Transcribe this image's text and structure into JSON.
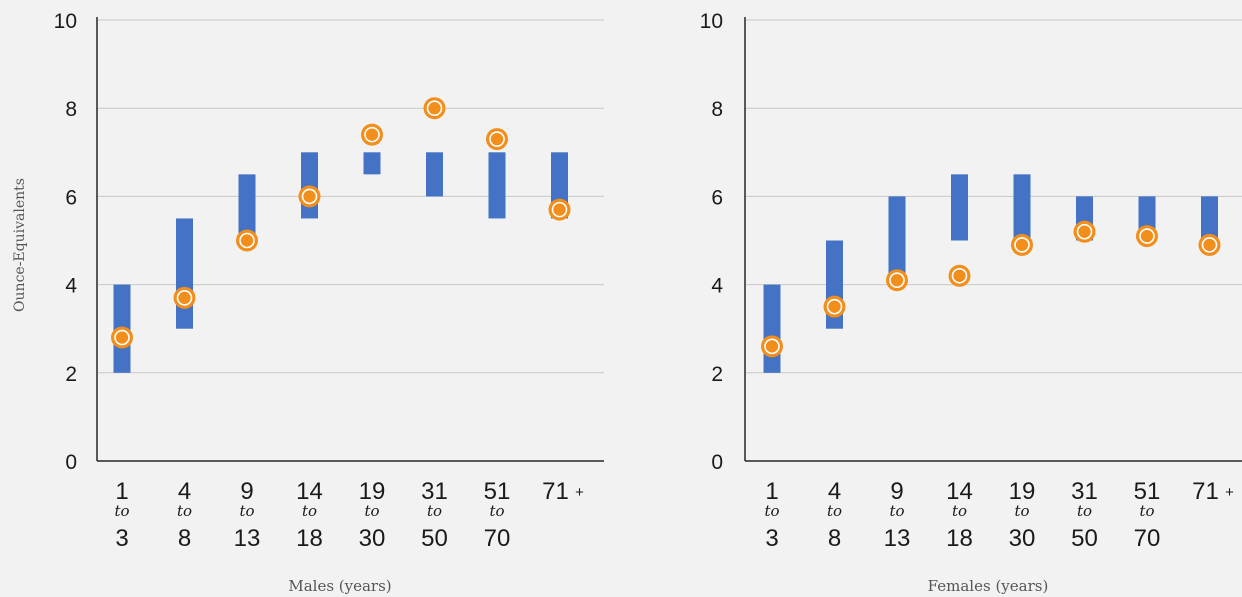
{
  "y_axis_label": "Ounce-Equivalents",
  "colors": {
    "bar": "#4472c4",
    "marker_fill": "#f28e1c",
    "marker_ring": "#ffffff",
    "grid": "#c8c8c8",
    "axis": "#262626"
  },
  "categories": [
    {
      "top": "1",
      "mid": "to",
      "bottom": "3"
    },
    {
      "top": "4",
      "mid": "to",
      "bottom": "8"
    },
    {
      "top": "9",
      "mid": "to",
      "bottom": "13"
    },
    {
      "top": "14",
      "mid": "to",
      "bottom": "18"
    },
    {
      "top": "19",
      "mid": "to",
      "bottom": "30"
    },
    {
      "top": "31",
      "mid": "to",
      "bottom": "50"
    },
    {
      "top": "51",
      "mid": "to",
      "bottom": "70"
    },
    {
      "top": "71",
      "mid": "+",
      "bottom": ""
    }
  ],
  "chart_data": [
    {
      "type": "floating-bar-with-markers",
      "xlabel": "Males (years)",
      "ylabel": "Ounce-Equivalents",
      "ylim": [
        0,
        10
      ],
      "yticks": [
        0,
        2,
        4,
        6,
        8,
        10
      ],
      "grid": true,
      "categories": [
        "1 to 3",
        "4 to 8",
        "9 to 13",
        "14 to 18",
        "19 to 30",
        "31 to 50",
        "51 to 70",
        "71 +"
      ],
      "range_low": [
        2,
        3,
        5,
        5.5,
        6.5,
        6,
        5.5,
        5.5
      ],
      "range_high": [
        4,
        5.5,
        6.5,
        7,
        7,
        7,
        7,
        7
      ],
      "points": [
        2.8,
        3.7,
        5.0,
        6.0,
        7.4,
        8.0,
        7.3,
        5.7
      ]
    },
    {
      "type": "floating-bar-with-markers",
      "xlabel": "Females (years)",
      "ylabel": "",
      "ylim": [
        0,
        10
      ],
      "yticks": [
        0,
        2,
        4,
        6,
        8,
        10
      ],
      "grid": true,
      "categories": [
        "1 to 3",
        "4 to 8",
        "9 to 13",
        "14 to 18",
        "19 to 30",
        "31 to 50",
        "51 to 70",
        "71 +"
      ],
      "range_low": [
        2,
        3,
        4,
        5,
        5,
        5,
        5,
        5
      ],
      "range_high": [
        4,
        5,
        6,
        6.5,
        6.5,
        6,
        6,
        6
      ],
      "points": [
        2.6,
        3.5,
        4.1,
        4.2,
        4.9,
        5.2,
        5.1,
        4.9
      ]
    }
  ]
}
